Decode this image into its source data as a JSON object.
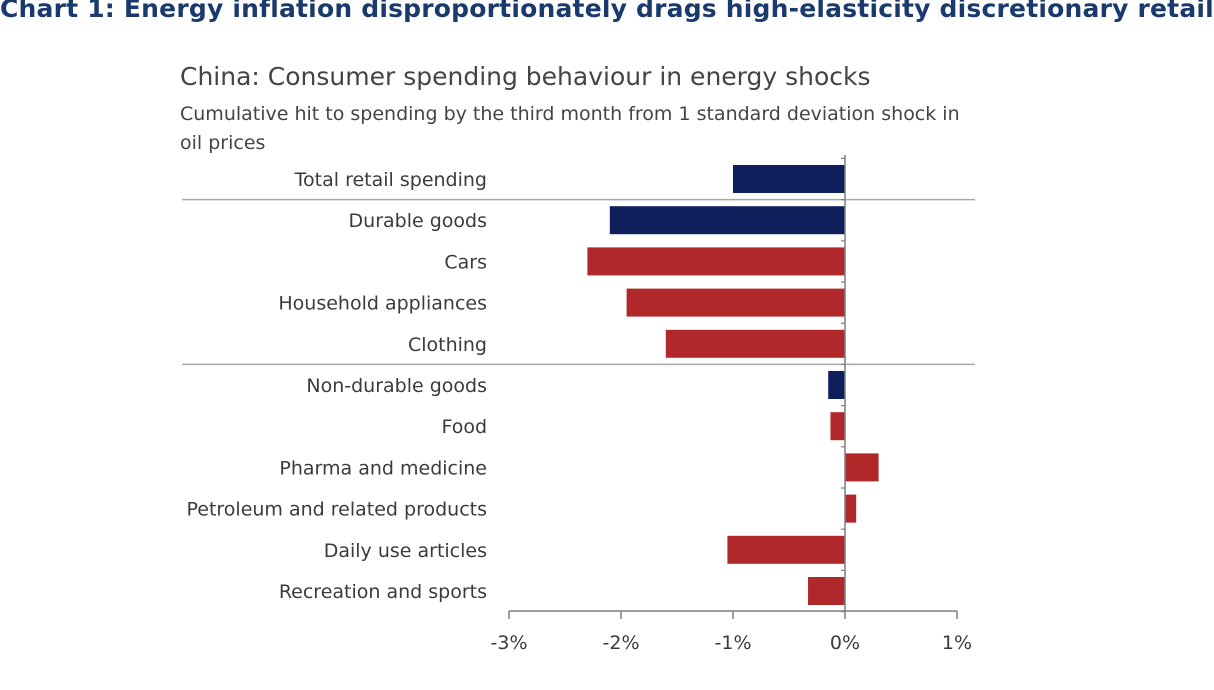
{
  "header": {
    "title": "Chart 1: Energy inflation disproportionately drags high-elasticity discretionary retail"
  },
  "chart_data": {
    "type": "bar",
    "orientation": "horizontal",
    "title": "China: Consumer spending behaviour in energy shocks",
    "subtitle": "Cumulative hit to spending by the third month from 1 standard deviation shock in oil prices",
    "categories": [
      "Total retail spending",
      "Durable goods",
      "Cars",
      "Household appliances",
      "Clothing",
      "Non-durable goods",
      "Food",
      "Pharma and medicine",
      "Petroleum and related products",
      "Daily use articles",
      "Recreation and sports"
    ],
    "values": [
      -1.0,
      -2.1,
      -2.3,
      -1.95,
      -1.6,
      -0.15,
      -0.13,
      0.3,
      0.1,
      -1.05,
      -0.33
    ],
    "bar_kind": [
      "aggregate",
      "aggregate",
      "component",
      "component",
      "component",
      "aggregate",
      "component",
      "component",
      "component",
      "component",
      "component"
    ],
    "group_separators_after": [
      0,
      4
    ],
    "xlim": [
      -3,
      1
    ],
    "xticks": [
      -3,
      -2,
      -1,
      0,
      1
    ],
    "xtick_labels": [
      "-3%",
      "-2%",
      "-1%",
      "0%",
      "1%"
    ],
    "xlabel": "",
    "ylabel": "",
    "grid": false,
    "colors": {
      "aggregate": "#0e1f5b",
      "component": "#b0282a",
      "separator": "#a8a8a8",
      "axis": "#7f7f7f",
      "label": "#3b3b3b"
    }
  }
}
